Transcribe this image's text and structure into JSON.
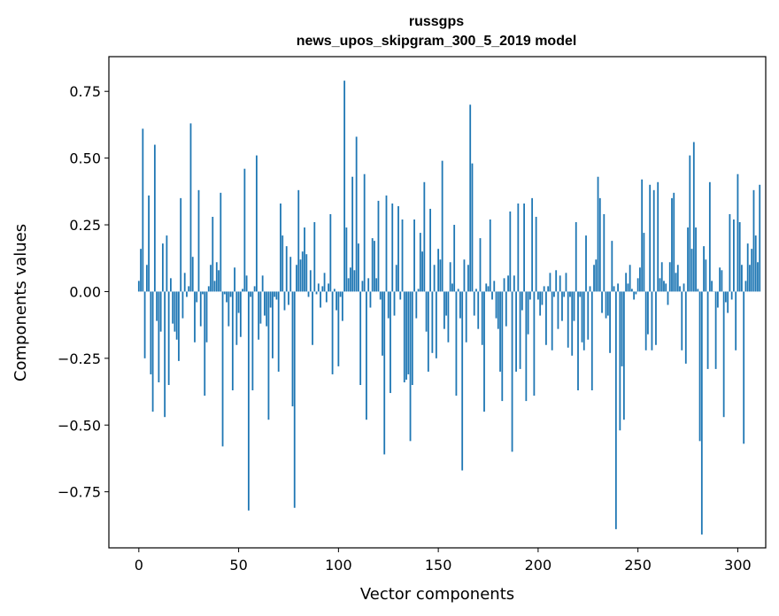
{
  "chart_data": {
    "type": "bar",
    "title_line1": "russgps",
    "title_line2": "news_upos_skipgram_300_5_2019 model",
    "xlabel": "Vector components",
    "ylabel": "Components values",
    "xlim": [
      -15,
      314
    ],
    "ylim": [
      -0.96,
      0.88
    ],
    "x_ticks": [
      0,
      50,
      100,
      150,
      200,
      250,
      300
    ],
    "x_tick_labels": [
      "0",
      "50",
      "100",
      "150",
      "200",
      "250",
      "300"
    ],
    "y_ticks": [
      -0.75,
      -0.5,
      -0.25,
      0.0,
      0.25,
      0.5,
      0.75
    ],
    "y_tick_labels": [
      "−0.75",
      "−0.50",
      "−0.25",
      "0.00",
      "0.25",
      "0.50",
      "0.75"
    ],
    "bar_color": "#1f77b4",
    "values": [
      0.04,
      0.16,
      0.61,
      -0.25,
      0.1,
      0.36,
      -0.31,
      -0.45,
      0.55,
      -0.11,
      -0.34,
      -0.15,
      0.18,
      -0.47,
      0.21,
      -0.35,
      0.05,
      -0.12,
      -0.15,
      -0.18,
      -0.26,
      0.35,
      -0.1,
      0.07,
      -0.02,
      0.02,
      0.63,
      0.13,
      -0.19,
      -0.04,
      0.38,
      -0.13,
      -0.01,
      -0.39,
      -0.19,
      0.02,
      0.1,
      0.28,
      0.04,
      0.11,
      0.08,
      0.37,
      -0.58,
      -0.01,
      -0.04,
      -0.13,
      -0.02,
      -0.37,
      0.09,
      -0.2,
      -0.08,
      -0.17,
      0.01,
      0.46,
      0.06,
      -0.82,
      -0.02,
      -0.37,
      0.02,
      0.51,
      -0.18,
      -0.12,
      0.06,
      -0.09,
      -0.13,
      -0.48,
      -0.06,
      -0.25,
      -0.02,
      -0.03,
      -0.3,
      0.33,
      0.21,
      -0.07,
      0.17,
      -0.05,
      0.13,
      -0.43,
      -0.81,
      0.1,
      0.38,
      0.12,
      0.15,
      0.24,
      0.14,
      -0.02,
      0.08,
      -0.2,
      0.26,
      -0.01,
      0.03,
      -0.06,
      0.02,
      0.07,
      -0.04,
      0.03,
      0.29,
      -0.31,
      0.01,
      -0.07,
      -0.28,
      -0.02,
      -0.11,
      0.79,
      0.24,
      0.05,
      0.09,
      0.43,
      0.08,
      0.58,
      0.18,
      -0.35,
      0.04,
      0.44,
      -0.48,
      0.05,
      -0.06,
      0.2,
      0.19,
      0.05,
      0.34,
      -0.03,
      -0.24,
      -0.61,
      0.36,
      -0.1,
      -0.38,
      0.33,
      -0.09,
      0.1,
      0.32,
      -0.03,
      0.27,
      -0.34,
      -0.33,
      -0.31,
      -0.56,
      -0.35,
      0.27,
      -0.1,
      0.01,
      0.22,
      0.15,
      0.41,
      -0.15,
      -0.3,
      0.31,
      -0.23,
      0.1,
      -0.25,
      0.16,
      0.12,
      0.49,
      -0.14,
      -0.09,
      -0.19,
      0.11,
      0.03,
      0.25,
      -0.39,
      0.01,
      -0.1,
      -0.67,
      0.12,
      -0.19,
      0.1,
      0.7,
      0.48,
      -0.09,
      0.01,
      -0.14,
      0.2,
      -0.2,
      -0.45,
      0.03,
      0.02,
      0.27,
      -0.03,
      0.04,
      -0.1,
      -0.14,
      -0.3,
      -0.41,
      0.05,
      -0.13,
      0.06,
      0.3,
      -0.6,
      0.06,
      -0.3,
      0.33,
      -0.29,
      -0.07,
      0.33,
      -0.41,
      -0.16,
      -0.03,
      0.35,
      -0.39,
      0.28,
      -0.03,
      -0.09,
      -0.05,
      0.02,
      -0.2,
      0.02,
      0.07,
      -0.22,
      -0.02,
      0.08,
      -0.14,
      0.06,
      -0.11,
      -0.02,
      0.07,
      -0.21,
      -0.02,
      -0.24,
      -0.11,
      0.26,
      -0.37,
      -0.02,
      -0.19,
      -0.22,
      0.21,
      -0.18,
      0.02,
      -0.37,
      0.1,
      0.12,
      0.43,
      0.35,
      -0.08,
      0.29,
      -0.1,
      -0.09,
      -0.23,
      0.19,
      0.02,
      -0.89,
      0.03,
      -0.52,
      -0.28,
      -0.48,
      0.07,
      0.03,
      0.1,
      0.01,
      -0.03,
      -0.01,
      0.05,
      0.09,
      0.42,
      0.22,
      -0.22,
      -0.16,
      0.4,
      -0.22,
      0.38,
      -0.2,
      0.41,
      0.05,
      0.11,
      0.04,
      0.03,
      -0.05,
      0.11,
      0.35,
      0.37,
      0.07,
      0.1,
      0.02,
      -0.22,
      0.03,
      -0.27,
      0.24,
      0.51,
      0.16,
      0.56,
      0.24,
      0.01,
      -0.56,
      -0.91,
      0.17,
      0.12,
      -0.29,
      0.41,
      0.04,
      0.0,
      -0.29,
      -0.06,
      0.09,
      0.08,
      -0.47,
      -0.04,
      -0.08,
      0.29,
      -0.03,
      0.27,
      -0.22,
      0.44,
      0.26,
      0.1,
      -0.57,
      0.04,
      0.18,
      0.1,
      0.16,
      0.38,
      0.21,
      0.11,
      0.4
    ]
  }
}
